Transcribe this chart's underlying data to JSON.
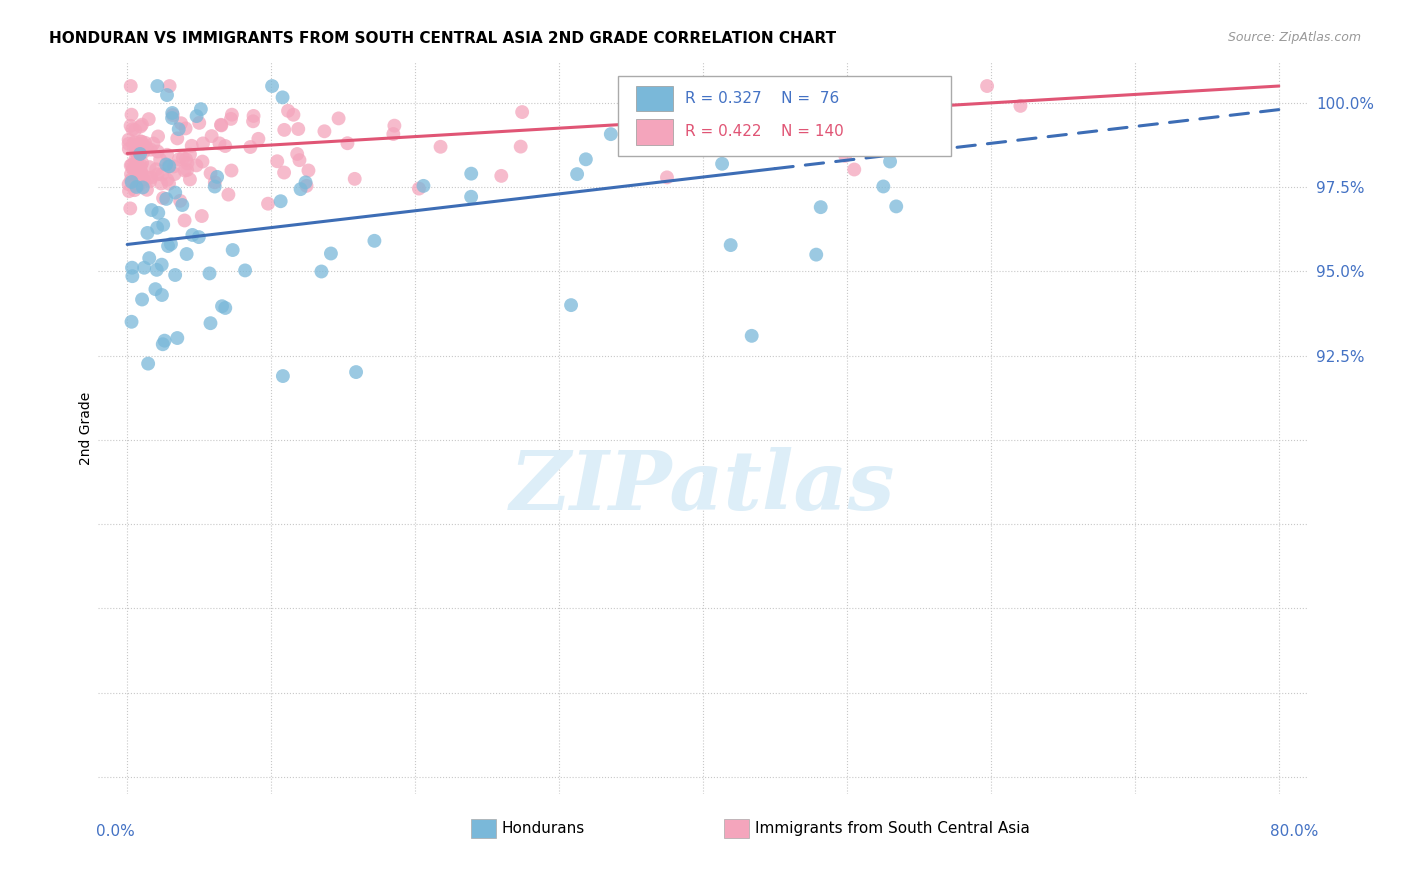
{
  "title": "HONDURAN VS IMMIGRANTS FROM SOUTH CENTRAL ASIA 2ND GRADE CORRELATION CHART",
  "source": "Source: ZipAtlas.com",
  "ylabel": "2nd Grade",
  "xlim": [
    0.0,
    80.0
  ],
  "ylim": [
    79.5,
    101.2
  ],
  "blue_R": 0.327,
  "blue_N": 76,
  "pink_R": 0.422,
  "pink_N": 140,
  "blue_color": "#7ab8d9",
  "pink_color": "#f4a5bc",
  "blue_line_color": "#3d6db5",
  "pink_line_color": "#e05575",
  "legend_blue_label": "Hondurans",
  "legend_pink_label": "Immigrants from South Central Asia",
  "watermark_text": "ZIPatlas",
  "watermark_color": "#ddeef8",
  "right_yticks": [
    100.0,
    97.5,
    95.0,
    92.5
  ],
  "grid_yticks": [
    100.0,
    97.5,
    95.0,
    92.5,
    90.0,
    87.5,
    85.0,
    82.5,
    80.0
  ],
  "grid_xticks": [
    0,
    10,
    20,
    30,
    40,
    50,
    60,
    70,
    80
  ],
  "blue_trend": [
    0,
    95.8,
    80,
    99.8
  ],
  "pink_trend": [
    0,
    98.5,
    80,
    100.5
  ],
  "blue_dash_start_x": 45,
  "grid_color": "#c8c8c8",
  "grid_linestyle": ":",
  "title_fontsize": 11,
  "source_fontsize": 9,
  "tick_fontsize": 11,
  "legend_fontsize": 11
}
